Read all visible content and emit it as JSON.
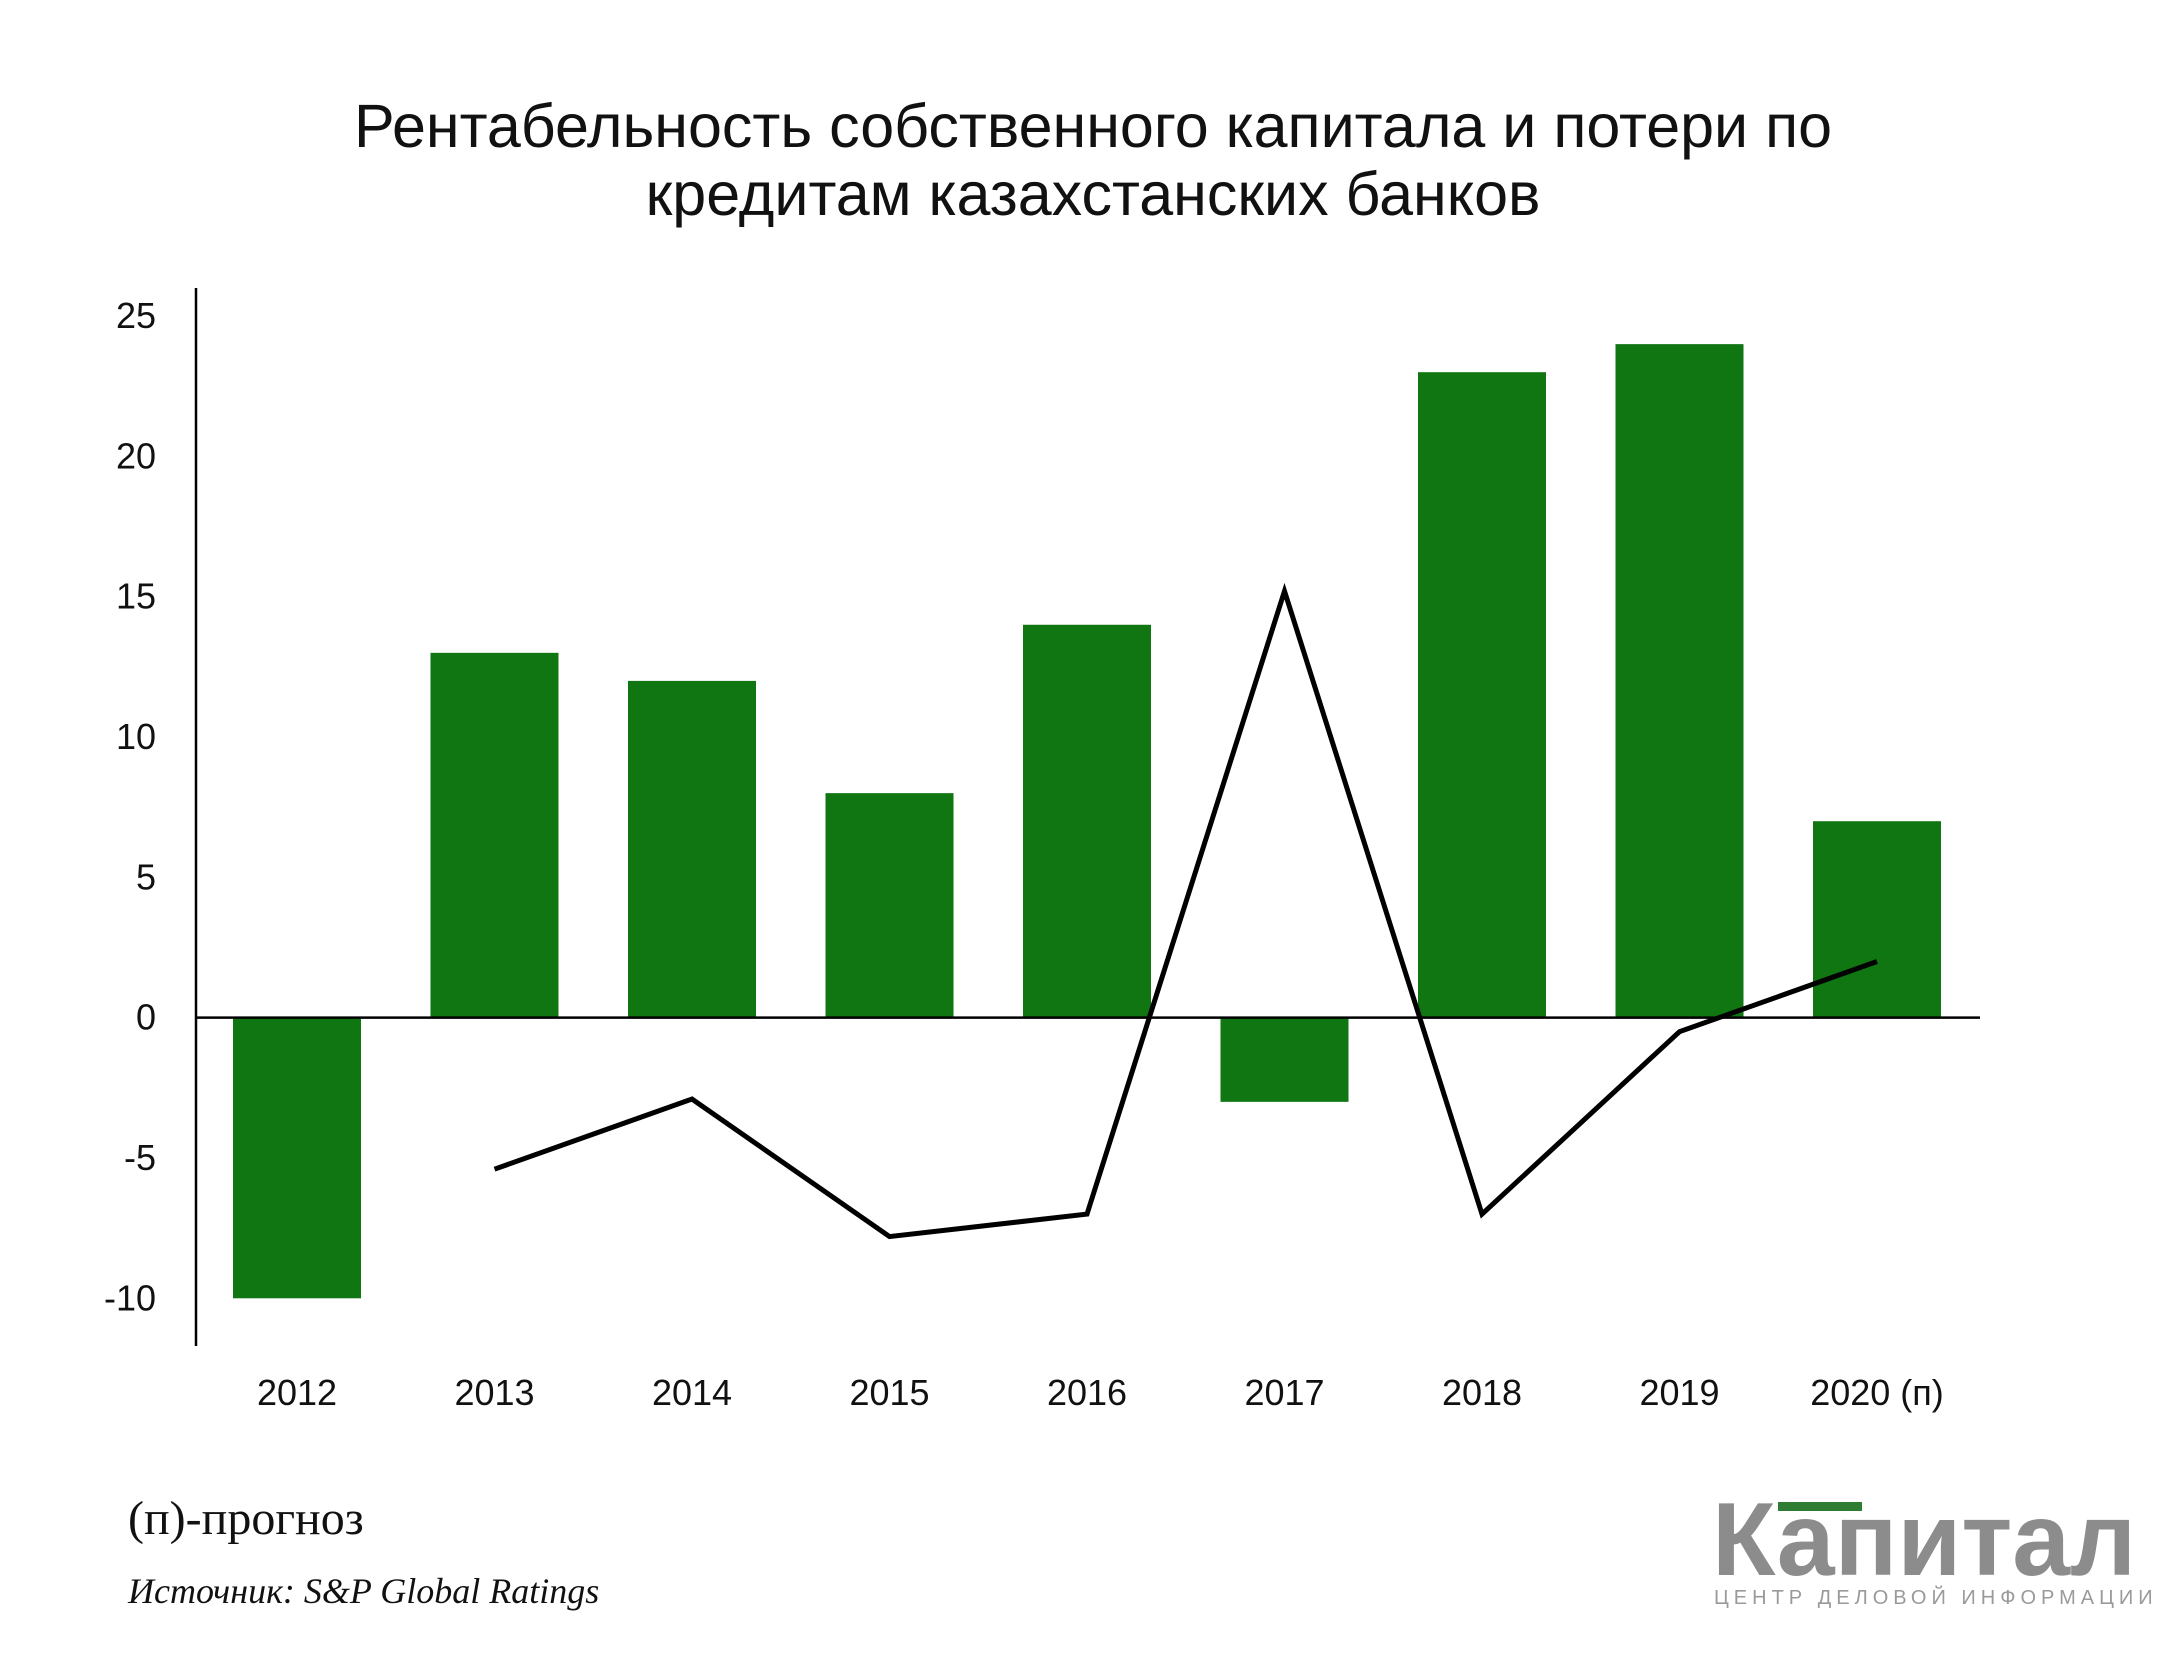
{
  "chart_data": {
    "type": "bar",
    "title_lines": [
      "Рентабельность собственного капитала и потери по",
      "кредитам казахстанских банков"
    ],
    "categories": [
      "2012",
      "2013",
      "2014",
      "2015",
      "2016",
      "2017",
      "2018",
      "2019",
      "2020 (п)"
    ],
    "series": [
      {
        "type": "bar",
        "color": "#0f7612",
        "values": [
          -10,
          13,
          12,
          8,
          14,
          -3,
          23,
          24,
          7
        ]
      },
      {
        "type": "line",
        "color": "#000000",
        "values": [
          null,
          -5.4,
          -2.9,
          -7.8,
          -7.0,
          15.2,
          -7.0,
          -0.5,
          2.0
        ]
      }
    ],
    "ylim": [
      -11.7,
      26
    ],
    "yticks": [
      25,
      20,
      15,
      10,
      5,
      0,
      -5,
      -10
    ],
    "xlabel": "",
    "ylabel": "",
    "grid": false,
    "legend": "none"
  },
  "footnote": "(п)-прогноз",
  "source": {
    "label": "Источник:",
    "value": " S&P Global Ratings"
  },
  "logo": {
    "word": "Капитал",
    "tagline": "ЦЕНТР ДЕЛОВОЙ ИНФОРМАЦИИ",
    "color": "#8c8c8c",
    "accent_color": "#2e7d32"
  }
}
